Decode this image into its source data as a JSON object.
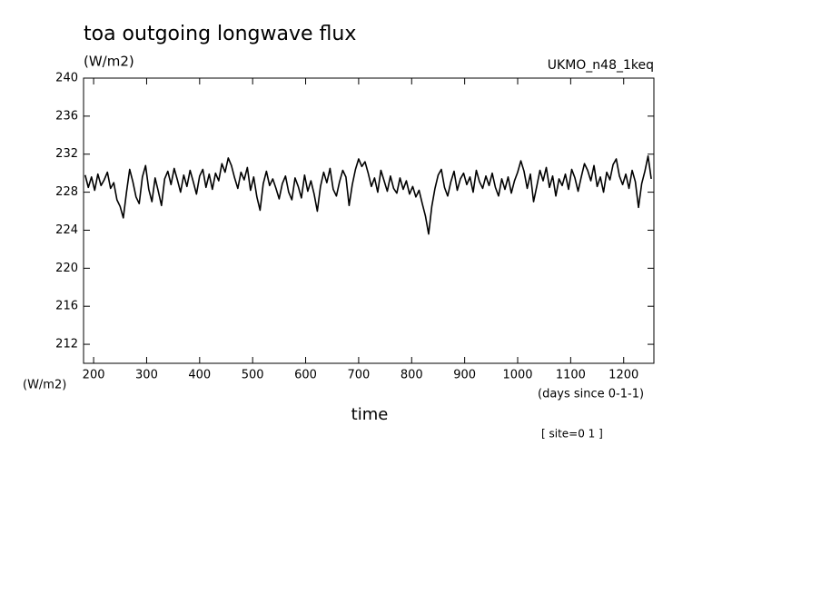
{
  "chart_data": {
    "type": "line",
    "title": "toa outgoing longwave flux",
    "units_label": "(W/m2)",
    "dataset_label": "UKMO_n48_1keq",
    "y_axis_label": "(W/m2)",
    "x_units_label": "(days since 0-1-1)",
    "x_axis_label": "time",
    "site_label": "[ site=0 1 ]",
    "xlim": [
      181,
      1257
    ],
    "ylim": [
      210,
      240
    ],
    "xticks": [
      200,
      300,
      400,
      500,
      600,
      700,
      800,
      900,
      1000,
      1100,
      1200
    ],
    "yticks": [
      212,
      216,
      220,
      224,
      228,
      232,
      236,
      240
    ],
    "color": "#000000",
    "x": [
      184,
      190,
      196,
      202,
      208,
      214,
      220,
      226,
      232,
      238,
      244,
      250,
      256,
      262,
      268,
      274,
      280,
      286,
      292,
      298,
      304,
      310,
      316,
      322,
      328,
      334,
      340,
      346,
      352,
      358,
      364,
      370,
      376,
      382,
      388,
      394,
      400,
      406,
      412,
      418,
      424,
      430,
      436,
      442,
      448,
      454,
      460,
      466,
      472,
      478,
      484,
      490,
      496,
      502,
      508,
      514,
      520,
      526,
      532,
      538,
      544,
      550,
      556,
      562,
      568,
      574,
      580,
      586,
      592,
      598,
      604,
      610,
      616,
      622,
      628,
      634,
      640,
      646,
      652,
      658,
      664,
      670,
      676,
      682,
      688,
      694,
      700,
      706,
      712,
      718,
      724,
      730,
      736,
      742,
      748,
      754,
      760,
      766,
      772,
      778,
      784,
      790,
      796,
      802,
      808,
      814,
      820,
      826,
      832,
      838,
      844,
      850,
      856,
      862,
      868,
      874,
      880,
      886,
      892,
      898,
      904,
      910,
      916,
      922,
      928,
      934,
      940,
      946,
      952,
      958,
      964,
      970,
      976,
      982,
      988,
      994,
      1000,
      1006,
      1012,
      1018,
      1024,
      1030,
      1036,
      1042,
      1048,
      1054,
      1060,
      1066,
      1072,
      1078,
      1084,
      1090,
      1096,
      1102,
      1108,
      1114,
      1120,
      1126,
      1132,
      1138,
      1144,
      1150,
      1156,
      1162,
      1168,
      1174,
      1180,
      1186,
      1192,
      1198,
      1204,
      1210,
      1216,
      1222,
      1228,
      1234,
      1240,
      1246,
      1252
    ],
    "values": [
      229.8,
      228.5,
      229.6,
      228.2,
      229.9,
      228.7,
      229.3,
      230.1,
      228.4,
      229.0,
      227.2,
      226.5,
      225.3,
      228.0,
      230.4,
      229.1,
      227.5,
      226.8,
      229.6,
      230.8,
      228.3,
      227.0,
      229.5,
      228.1,
      226.6,
      229.4,
      230.2,
      228.8,
      230.5,
      229.3,
      228.0,
      229.8,
      228.6,
      230.3,
      229.1,
      227.8,
      229.7,
      230.4,
      228.5,
      229.9,
      228.3,
      230.0,
      229.2,
      231.0,
      230.1,
      231.6,
      230.8,
      229.5,
      228.4,
      230.1,
      229.3,
      230.6,
      228.2,
      229.6,
      227.5,
      226.1,
      228.9,
      230.2,
      228.7,
      229.4,
      228.4,
      227.3,
      228.9,
      229.7,
      228.0,
      227.2,
      229.5,
      228.6,
      227.4,
      229.8,
      228.1,
      229.2,
      227.8,
      226.0,
      228.6,
      230.1,
      229.0,
      230.5,
      228.3,
      227.6,
      229.1,
      230.3,
      229.6,
      226.6,
      228.8,
      230.4,
      231.5,
      230.7,
      231.2,
      230.0,
      228.6,
      229.5,
      228.0,
      230.3,
      229.2,
      228.1,
      229.7,
      228.4,
      227.9,
      229.5,
      228.3,
      229.2,
      227.8,
      228.6,
      227.5,
      228.2,
      226.8,
      225.5,
      223.6,
      226.5,
      228.4,
      229.8,
      230.4,
      228.5,
      227.6,
      229.1,
      230.2,
      228.2,
      229.4,
      230.0,
      228.8,
      229.6,
      228.0,
      230.3,
      229.1,
      228.4,
      229.7,
      228.7,
      230.0,
      228.5,
      227.6,
      229.4,
      228.3,
      229.6,
      227.9,
      229.2,
      230.1,
      231.3,
      230.2,
      228.4,
      229.9,
      227.0,
      228.6,
      230.3,
      229.2,
      230.6,
      228.5,
      229.7,
      227.6,
      229.4,
      228.7,
      229.9,
      228.3,
      230.4,
      229.5,
      228.1,
      229.6,
      231.0,
      230.3,
      229.2,
      230.8,
      228.6,
      229.6,
      228.0,
      230.1,
      229.3,
      230.9,
      231.5,
      229.7,
      228.8,
      229.9,
      228.4,
      230.3,
      229.1,
      226.4,
      228.9,
      230.2,
      231.8,
      229.4
    ]
  }
}
